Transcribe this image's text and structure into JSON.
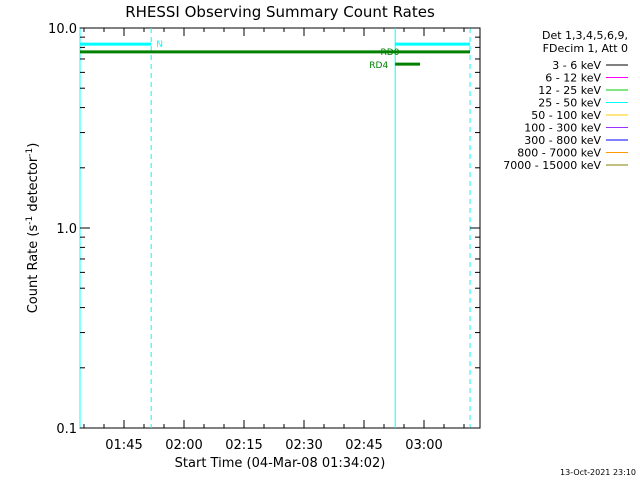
{
  "chart_data": {
    "type": "line",
    "title": "RHESSI Observing Summary Count Rates",
    "xlabel": "Start Time (04-Mar-08 01:34:02)",
    "ylabel_main": "Count Rate (s",
    "ylabel_sup1": "-1",
    "ylabel_mid": " detector",
    "ylabel_sup2": "-1",
    "ylabel_end": ")",
    "yscale": "log",
    "ylim": [
      0.1,
      10.0
    ],
    "xlim_minutes": [
      94.0,
      194.0
    ],
    "x_ticks": [
      {
        "label": "01:45",
        "minutes": 105
      },
      {
        "label": "02:00",
        "minutes": 120
      },
      {
        "label": "02:15",
        "minutes": 135
      },
      {
        "label": "02:30",
        "minutes": 150
      },
      {
        "label": "02:45",
        "minutes": 165
      },
      {
        "label": "03:00",
        "minutes": 180
      }
    ],
    "y_ticks": [
      {
        "label": "0.1",
        "value": 0.1
      },
      {
        "label": "1.0",
        "value": 1.0
      },
      {
        "label": "10.0",
        "value": 10.0
      }
    ],
    "legend": {
      "placement": "right",
      "header": [
        "Det 1,3,4,5,6,9,",
        "FDecim 1, Att 0"
      ],
      "entries": [
        {
          "label": "3 - 6 keV",
          "color": "#000000"
        },
        {
          "label": "6 - 12 keV",
          "color": "#ff00ff"
        },
        {
          "label": "12 - 25 keV",
          "color": "#00cc00"
        },
        {
          "label": "25 - 50 keV",
          "color": "#00ffff"
        },
        {
          "label": "50 - 100 keV",
          "color": "#ffcc00"
        },
        {
          "label": "100 - 300 keV",
          "color": "#9933ff"
        },
        {
          "label": "300 - 800 keV",
          "color": "#0000ff"
        },
        {
          "label": "800 - 7000 keV",
          "color": "#ff9900"
        },
        {
          "label": "7000 - 15000 keV",
          "color": "#808000"
        }
      ]
    },
    "flag_bars": [
      {
        "label": "N",
        "color": "#00ffff",
        "segments": [
          [
            94.0,
            111.8
          ],
          [
            172.8,
            191.5
          ]
        ],
        "y_value": 8.3
      },
      {
        "label": "RD0",
        "color": "#008000",
        "segments": [
          [
            94.0,
            191.5
          ]
        ],
        "y_value": 7.6
      },
      {
        "label": "RD4",
        "color": "#008000",
        "segments": [
          [
            172.8,
            179.0
          ]
        ],
        "y_value": 6.6
      }
    ],
    "vertical_lines": [
      {
        "minutes": 94.0,
        "style": "solid",
        "color": "#00ffff"
      },
      {
        "minutes": 111.8,
        "style": "dashed",
        "color": "#00ffff"
      },
      {
        "minutes": 172.8,
        "style": "solid",
        "color": "#00ffff"
      },
      {
        "minutes": 191.5,
        "style": "dashed",
        "color": "#00ffff"
      }
    ],
    "grid": false
  },
  "footer": {
    "timestamp": "13-Oct-2021 23:10"
  }
}
